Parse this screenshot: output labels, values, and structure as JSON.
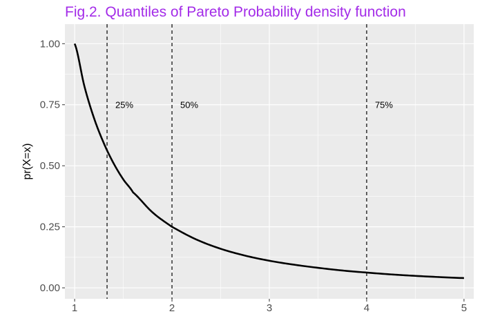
{
  "chart_data": {
    "type": "line",
    "title": "Fig.2. Quantiles of Pareto Probability density function",
    "xlabel": "",
    "ylabel": "pr(X=x)",
    "xlim": [
      0.9,
      5.1
    ],
    "ylim": [
      0,
      1.0
    ],
    "x_ticks": [
      1,
      2,
      3,
      4,
      5
    ],
    "x_tick_labels": [
      "1",
      "2",
      "3",
      "4",
      "5"
    ],
    "y_ticks": [
      0,
      0.25,
      0.5,
      0.75,
      1.0
    ],
    "y_tick_labels": [
      "0.00",
      "0.25",
      "0.50",
      "0.75",
      "1.00"
    ],
    "series": [
      {
        "x": [
          1.0,
          1.1,
          1.2,
          1.3,
          1.4,
          1.5,
          1.6,
          1.8,
          2.0,
          2.25,
          2.5,
          2.75,
          3.0,
          3.25,
          3.5,
          3.75,
          4.0,
          4.25,
          4.5,
          4.75,
          5.0
        ],
        "y": [
          1.0,
          0.826,
          0.694,
          0.592,
          0.51,
          0.444,
          0.391,
          0.309,
          0.25,
          0.198,
          0.16,
          0.132,
          0.111,
          0.095,
          0.082,
          0.071,
          0.0625,
          0.055,
          0.049,
          0.044,
          0.04
        ]
      }
    ],
    "quantile_lines": [
      {
        "x": 1.333,
        "label": "25%"
      },
      {
        "x": 2.0,
        "label": "50%"
      },
      {
        "x": 4.0,
        "label": "75%"
      }
    ],
    "annotation_y": 0.75,
    "grid": true,
    "legend": "none",
    "colors": {
      "title": "#a32be8",
      "panel_background": "#ebebeb",
      "grid": "#ffffff",
      "line": "#000000",
      "tick_label": "#4d4d4d"
    }
  }
}
